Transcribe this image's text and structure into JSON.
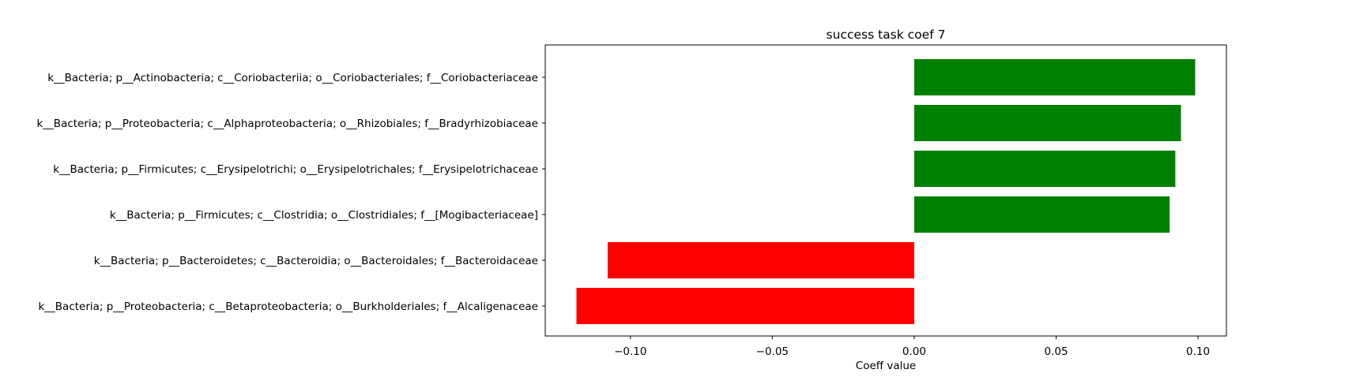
{
  "chart_data": {
    "type": "bar",
    "orientation": "horizontal",
    "title": "success task coef 7",
    "xlabel": "Coeff value",
    "ylabel": "",
    "categories": [
      "k__Bacteria; p__Actinobacteria; c__Coriobacteriia; o__Coriobacteriales; f__Coriobacteriaceae",
      "k__Bacteria; p__Proteobacteria; c__Alphaproteobacteria; o__Rhizobiales; f__Bradyrhizobiaceae",
      "k__Bacteria; p__Firmicutes; c__Erysipelotrichi; o__Erysipelotrichales; f__Erysipelotrichaceae",
      "k__Bacteria; p__Firmicutes; c__Clostridia; o__Clostridiales; f__[Mogibacteriaceae]",
      "k__Bacteria; p__Bacteroidetes; c__Bacteroidia; o__Bacteroidales; f__Bacteroidaceae",
      "k__Bacteria; p__Proteobacteria; c__Betaproteobacteria; o__Burkholderiales; f__Alcaligenaceae"
    ],
    "values": [
      0.099,
      0.094,
      0.092,
      0.09,
      -0.108,
      -0.119
    ],
    "xlim": [
      -0.13,
      0.11
    ],
    "xticks": [
      -0.1,
      -0.05,
      0.0,
      0.05,
      0.1
    ],
    "xtick_labels": [
      "−0.10",
      "−0.05",
      "0.00",
      "0.05",
      "0.10"
    ],
    "colors": {
      "positive": "#008000",
      "negative": "#ff0000"
    },
    "grid": false,
    "legend": "none"
  }
}
